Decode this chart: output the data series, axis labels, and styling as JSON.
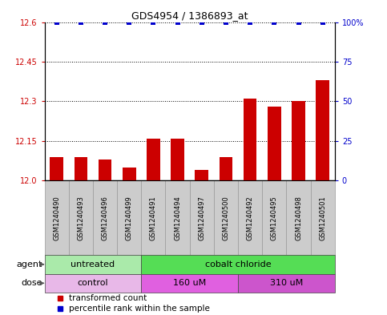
{
  "title": "GDS4954 / 1386893_at",
  "samples": [
    "GSM1240490",
    "GSM1240493",
    "GSM1240496",
    "GSM1240499",
    "GSM1240491",
    "GSM1240494",
    "GSM1240497",
    "GSM1240500",
    "GSM1240492",
    "GSM1240495",
    "GSM1240498",
    "GSM1240501"
  ],
  "bar_values": [
    12.09,
    12.09,
    12.08,
    12.05,
    12.16,
    12.16,
    12.04,
    12.09,
    12.31,
    12.28,
    12.3,
    12.38
  ],
  "percentile_values": [
    100,
    100,
    100,
    100,
    100,
    100,
    100,
    100,
    100,
    100,
    100,
    100
  ],
  "bar_color": "#cc0000",
  "percentile_color": "#0000cc",
  "ylim_left": [
    12.0,
    12.6
  ],
  "yticks_left": [
    12.0,
    12.15,
    12.3,
    12.45,
    12.6
  ],
  "ylim_right": [
    0,
    100
  ],
  "yticks_right": [
    0,
    25,
    50,
    75,
    100
  ],
  "hline_values": [
    12.15,
    12.3,
    12.45,
    12.6
  ],
  "agent_groups": [
    {
      "label": "untreated",
      "start": 0,
      "end": 4,
      "color": "#aaeaaa"
    },
    {
      "label": "cobalt chloride",
      "start": 4,
      "end": 12,
      "color": "#55dd55"
    }
  ],
  "dose_groups": [
    {
      "label": "control",
      "start": 0,
      "end": 4,
      "color": "#e8b8e8"
    },
    {
      "label": "160 uM",
      "start": 4,
      "end": 8,
      "color": "#e060e0"
    },
    {
      "label": "310 uM",
      "start": 8,
      "end": 12,
      "color": "#cc55cc"
    }
  ],
  "legend_bar_label": "transformed count",
  "legend_pct_label": "percentile rank within the sample",
  "bar_width": 0.55,
  "plot_bg": "#ffffff",
  "grid_color": "#000000",
  "tick_label_fontsize": 7,
  "axis_label_fontsize": 7,
  "label_area_color": "#cccccc",
  "label_area_edge": "#999999"
}
